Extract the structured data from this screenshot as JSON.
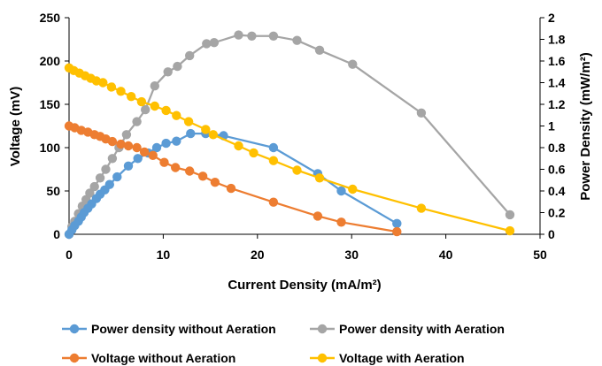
{
  "chart_data": {
    "type": "line",
    "xlabel": "Current Density (mA/m²)",
    "ylabel": "Voltage (mV)",
    "y2label": "Power Density (mW/m²)",
    "xlim": [
      0,
      50
    ],
    "ylim": [
      0,
      250
    ],
    "y2lim": [
      0,
      2
    ],
    "xticks": [
      "0",
      "10",
      "20",
      "30",
      "40",
      "50"
    ],
    "yticks": [
      "0",
      "50",
      "100",
      "150",
      "200",
      "250"
    ],
    "y2ticks": [
      "0",
      "0.2",
      "0.4",
      "0.6",
      "0.8",
      "1",
      "1.2",
      "1.4",
      "1.6",
      "1.8",
      "2"
    ],
    "grid": false,
    "legend_position": "bottom",
    "series": [
      {
        "name": "Power density without Aeration",
        "axis": "right",
        "color": "#5B9BD5",
        "points": [
          [
            0,
            0
          ],
          [
            0.3,
            0.04
          ],
          [
            0.6,
            0.08
          ],
          [
            1,
            0.12
          ],
          [
            1.3,
            0.16
          ],
          [
            1.6,
            0.2
          ],
          [
            2,
            0.24
          ],
          [
            2.4,
            0.28
          ],
          [
            2.9,
            0.33
          ],
          [
            3.3,
            0.37
          ],
          [
            3.8,
            0.41
          ],
          [
            4.3,
            0.46
          ],
          [
            5.1,
            0.53
          ],
          [
            6.3,
            0.63
          ],
          [
            7.3,
            0.7
          ],
          [
            8.4,
            0.75
          ],
          [
            9.3,
            0.8
          ],
          [
            10.3,
            0.84
          ],
          [
            11.4,
            0.86
          ],
          [
            12.9,
            0.93
          ],
          [
            14.5,
            0.93
          ],
          [
            16.4,
            0.91
          ],
          [
            21.7,
            0.8
          ],
          [
            26.4,
            0.56
          ],
          [
            28.9,
            0.4
          ],
          [
            34.8,
            0.1
          ]
        ]
      },
      {
        "name": "Power density with Aeration",
        "axis": "right",
        "color": "#A5A5A5",
        "points": [
          [
            0,
            0
          ],
          [
            0.3,
            0.07
          ],
          [
            0.6,
            0.12
          ],
          [
            1,
            0.19
          ],
          [
            1.4,
            0.26
          ],
          [
            1.8,
            0.32
          ],
          [
            2.2,
            0.38
          ],
          [
            2.7,
            0.44
          ],
          [
            3.3,
            0.52
          ],
          [
            3.9,
            0.6
          ],
          [
            4.6,
            0.7
          ],
          [
            5.3,
            0.8
          ],
          [
            6.1,
            0.92
          ],
          [
            7.2,
            1.04
          ],
          [
            8.1,
            1.15
          ],
          [
            9.1,
            1.37
          ],
          [
            10.5,
            1.5
          ],
          [
            11.5,
            1.55
          ],
          [
            12.8,
            1.65
          ],
          [
            14.6,
            1.76
          ],
          [
            15.4,
            1.77
          ],
          [
            18,
            1.84
          ],
          [
            19.4,
            1.83
          ],
          [
            21.7,
            1.83
          ],
          [
            24.2,
            1.79
          ],
          [
            26.6,
            1.7
          ],
          [
            30.1,
            1.57
          ],
          [
            37.4,
            1.12
          ],
          [
            46.8,
            0.18
          ]
        ]
      },
      {
        "name": "Voltage without Aeration",
        "axis": "left",
        "color": "#ED7D31",
        "points": [
          [
            0,
            125
          ],
          [
            0.6,
            123
          ],
          [
            1.3,
            120
          ],
          [
            2,
            118
          ],
          [
            2.7,
            115
          ],
          [
            3.3,
            113
          ],
          [
            3.9,
            110
          ],
          [
            4.6,
            107
          ],
          [
            5.5,
            104
          ],
          [
            6.3,
            102
          ],
          [
            7.2,
            100
          ],
          [
            8,
            95
          ],
          [
            8.9,
            91
          ],
          [
            10.1,
            83
          ],
          [
            11.3,
            77
          ],
          [
            12.8,
            73
          ],
          [
            14.2,
            67
          ],
          [
            15.5,
            60
          ],
          [
            17.2,
            53
          ],
          [
            21.7,
            37
          ],
          [
            26.4,
            21
          ],
          [
            28.9,
            14
          ],
          [
            34.8,
            3
          ]
        ]
      },
      {
        "name": "Voltage with Aeration",
        "axis": "left",
        "color": "#FFC000",
        "points": [
          [
            0,
            192
          ],
          [
            0.5,
            189
          ],
          [
            1.1,
            186
          ],
          [
            1.7,
            183
          ],
          [
            2.3,
            180
          ],
          [
            2.9,
            177
          ],
          [
            3.6,
            175
          ],
          [
            4.5,
            170
          ],
          [
            5.5,
            165
          ],
          [
            6.6,
            159
          ],
          [
            7.7,
            153
          ],
          [
            9.1,
            148
          ],
          [
            10.3,
            143
          ],
          [
            11.4,
            137
          ],
          [
            12.7,
            130
          ],
          [
            14.5,
            121
          ],
          [
            15.3,
            115
          ],
          [
            18,
            102
          ],
          [
            19.6,
            94
          ],
          [
            21.7,
            85
          ],
          [
            24.2,
            74
          ],
          [
            26.6,
            65
          ],
          [
            30.1,
            52
          ],
          [
            37.4,
            30
          ],
          [
            46.8,
            4
          ]
        ]
      }
    ]
  }
}
